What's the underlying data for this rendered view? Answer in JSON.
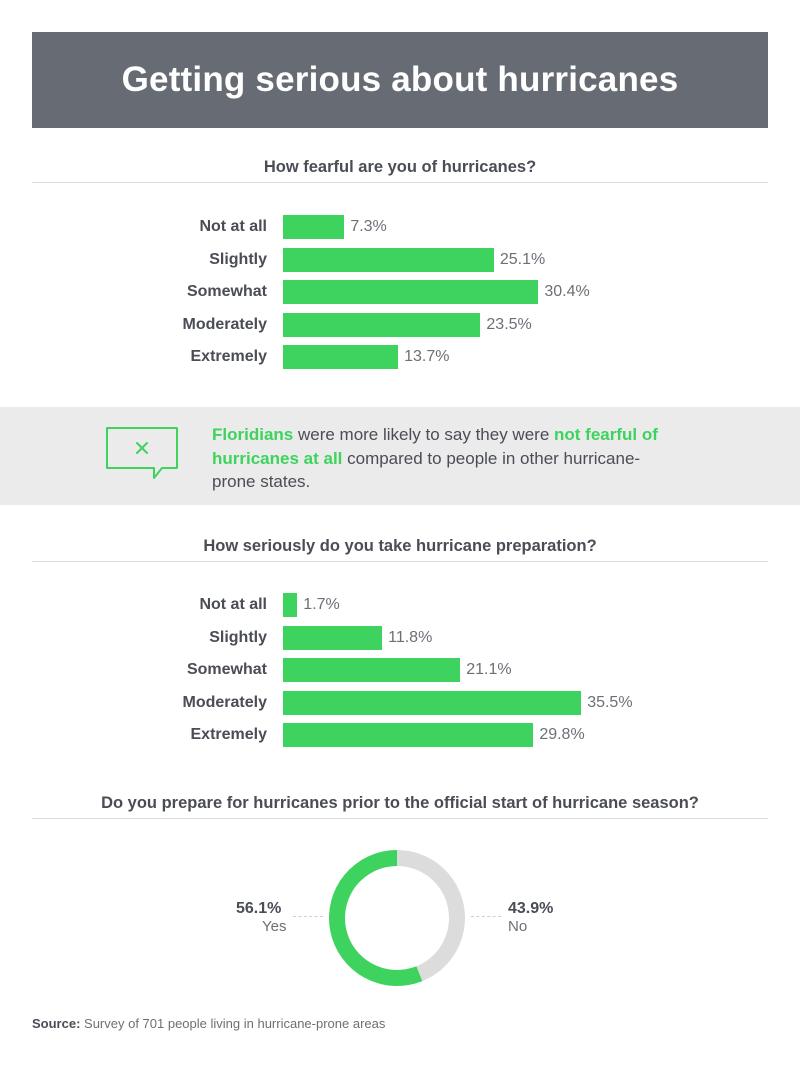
{
  "title": "Getting serious about hurricanes",
  "colors": {
    "banner": "#676b73",
    "accent_green": "#3ed35e",
    "neutral_gray": "#dcdcdc"
  },
  "chart_data": [
    {
      "type": "bar",
      "orientation": "horizontal",
      "title": "How fearful are you of hurricanes?",
      "categories": [
        "Not at all",
        "Slightly",
        "Somewhat",
        "Moderately",
        "Extremely"
      ],
      "values": [
        7.3,
        25.1,
        30.4,
        23.5,
        13.7
      ],
      "value_labels": [
        "7.3%",
        "25.1%",
        "30.4%",
        "23.5%",
        "13.7%"
      ],
      "unit": "%",
      "grid": false
    },
    {
      "type": "bar",
      "orientation": "horizontal",
      "title": "How seriously do you take hurricane preparation?",
      "categories": [
        "Not at all",
        "Slightly",
        "Somewhat",
        "Moderately",
        "Extremely"
      ],
      "values": [
        1.7,
        11.8,
        21.1,
        35.5,
        29.8
      ],
      "value_labels": [
        "1.7%",
        "11.8%",
        "21.1%",
        "35.5%",
        "29.8%"
      ],
      "unit": "%",
      "grid": false
    },
    {
      "type": "pie",
      "donut": true,
      "title": "Do you prepare for hurricanes prior to the official start of hurricane season?",
      "categories": [
        "Yes",
        "No"
      ],
      "values": [
        56.1,
        43.9
      ],
      "value_labels": [
        "56.1%",
        "43.9%"
      ],
      "colors": [
        "#3ed35e",
        "#dcdcdc"
      ]
    }
  ],
  "callout": {
    "icon": "chat-bubble-x-icon",
    "segments": [
      {
        "text": "Floridians",
        "highlight": true
      },
      {
        "text": " were more likely to say they were ",
        "highlight": false
      },
      {
        "text": "not fearful of hurricanes at all",
        "highlight": true
      },
      {
        "text": " compared to people in other hurricane-prone states.",
        "highlight": false
      }
    ]
  },
  "source": {
    "label": "Source:",
    "text": " Survey of 701 people living in hurricane-prone areas"
  }
}
